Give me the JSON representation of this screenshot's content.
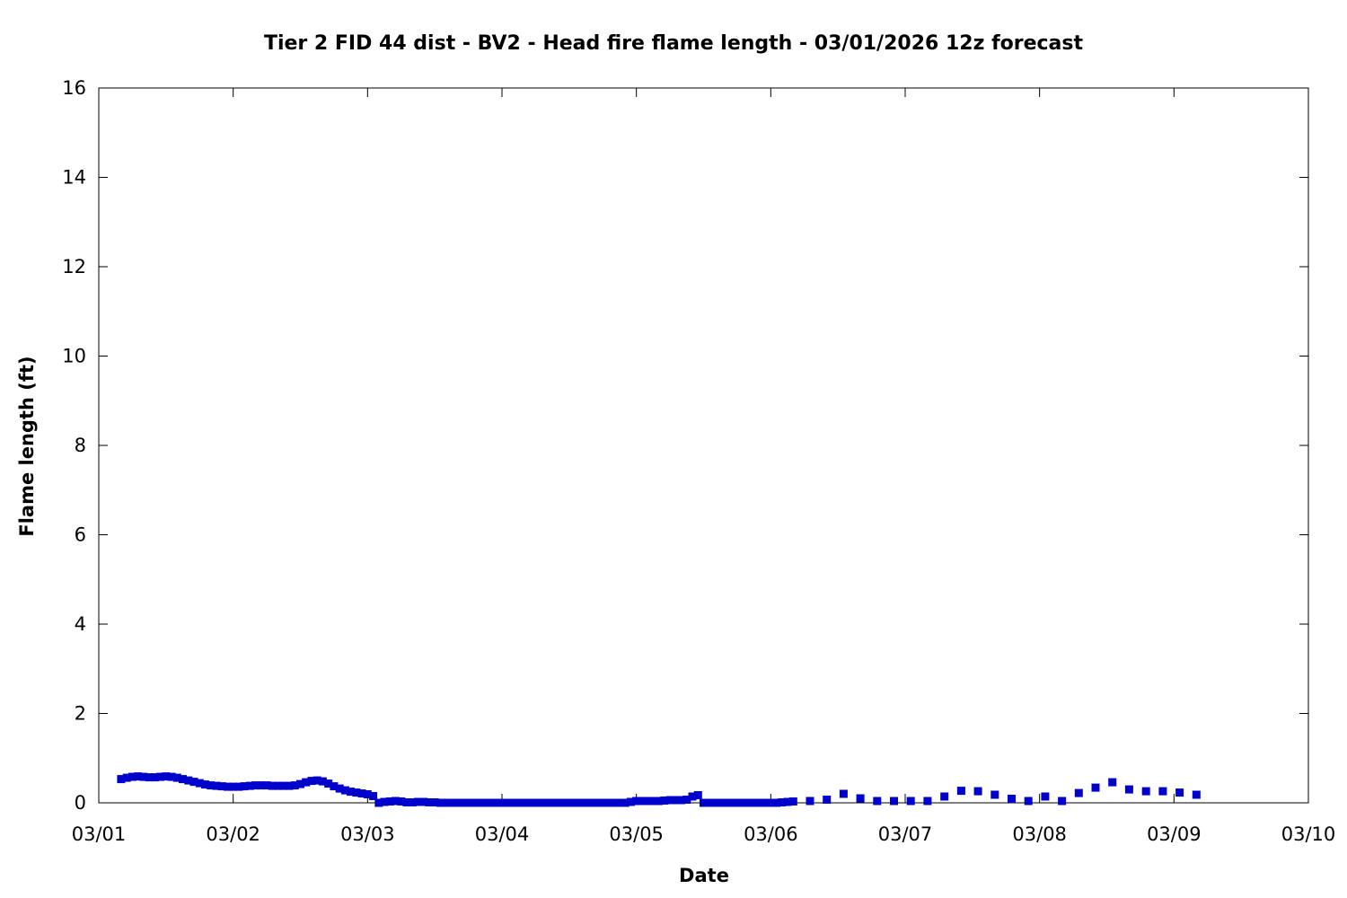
{
  "chart_data": {
    "type": "scatter",
    "title": "Tier 2 FID 44 dist - BV2 - Head fire flame length - 03/01/2026 12z forecast",
    "xlabel": "Date",
    "ylabel": "Flame length (ft)",
    "x_tick_labels": [
      "03/01",
      "03/02",
      "03/03",
      "03/04",
      "03/05",
      "03/06",
      "03/07",
      "03/08",
      "03/09",
      "03/10"
    ],
    "y_tick_labels": [
      "0",
      "2",
      "4",
      "6",
      "8",
      "10",
      "12",
      "14",
      "16"
    ],
    "xlim": [
      "03/01 00:00",
      "03/10 00:00"
    ],
    "ylim": [
      0,
      16
    ],
    "grid": false,
    "legend": "none",
    "marker_color": "#0000CC",
    "series": [
      {
        "points": [
          [
            "03/01 04:00",
            0.53
          ],
          [
            "03/01 05:00",
            0.56
          ],
          [
            "03/01 06:00",
            0.58
          ],
          [
            "03/01 07:00",
            0.59
          ],
          [
            "03/01 08:00",
            0.58
          ],
          [
            "03/01 09:00",
            0.57
          ],
          [
            "03/01 10:00",
            0.57
          ],
          [
            "03/01 11:00",
            0.58
          ],
          [
            "03/01 12:00",
            0.59
          ],
          [
            "03/01 13:00",
            0.58
          ],
          [
            "03/01 14:00",
            0.56
          ],
          [
            "03/01 15:00",
            0.53
          ],
          [
            "03/01 16:00",
            0.5
          ],
          [
            "03/01 17:00",
            0.47
          ],
          [
            "03/01 18:00",
            0.44
          ],
          [
            "03/01 19:00",
            0.41
          ],
          [
            "03/01 20:00",
            0.39
          ],
          [
            "03/01 21:00",
            0.38
          ],
          [
            "03/01 22:00",
            0.37
          ],
          [
            "03/01 23:00",
            0.36
          ],
          [
            "03/02 00:00",
            0.36
          ],
          [
            "03/02 01:00",
            0.36
          ],
          [
            "03/02 02:00",
            0.37
          ],
          [
            "03/02 03:00",
            0.38
          ],
          [
            "03/02 04:00",
            0.39
          ],
          [
            "03/02 05:00",
            0.39
          ],
          [
            "03/02 06:00",
            0.39
          ],
          [
            "03/02 07:00",
            0.38
          ],
          [
            "03/02 08:00",
            0.38
          ],
          [
            "03/02 09:00",
            0.38
          ],
          [
            "03/02 10:00",
            0.38
          ],
          [
            "03/02 11:00",
            0.39
          ],
          [
            "03/02 12:00",
            0.42
          ],
          [
            "03/02 13:00",
            0.46
          ],
          [
            "03/02 14:00",
            0.49
          ],
          [
            "03/02 15:00",
            0.5
          ],
          [
            "03/02 16:00",
            0.48
          ],
          [
            "03/02 17:00",
            0.43
          ],
          [
            "03/02 18:00",
            0.37
          ],
          [
            "03/02 19:00",
            0.32
          ],
          [
            "03/02 20:00",
            0.28
          ],
          [
            "03/02 21:00",
            0.25
          ],
          [
            "03/02 22:00",
            0.23
          ],
          [
            "03/02 23:00",
            0.21
          ],
          [
            "03/03 00:00",
            0.19
          ],
          [
            "03/03 01:00",
            0.15
          ],
          [
            "03/03 02:00",
            0.0
          ],
          [
            "03/03 03:00",
            0.02
          ],
          [
            "03/03 04:00",
            0.03
          ],
          [
            "03/03 05:00",
            0.04
          ],
          [
            "03/03 06:00",
            0.03
          ],
          [
            "03/03 07:00",
            0.01
          ],
          [
            "03/03 08:00",
            0.01
          ],
          [
            "03/03 09:00",
            0.02
          ],
          [
            "03/03 10:00",
            0.02
          ],
          [
            "03/03 11:00",
            0.01
          ],
          [
            "03/03 12:00",
            0.01
          ],
          [
            "03/03 13:00",
            0.0
          ],
          [
            "03/03 14:00",
            0.0
          ],
          [
            "03/03 15:00",
            0.0
          ],
          [
            "03/03 16:00",
            0.0
          ],
          [
            "03/03 17:00",
            0.0
          ],
          [
            "03/03 18:00",
            0.0
          ],
          [
            "03/03 19:00",
            0.0
          ],
          [
            "03/03 20:00",
            0.0
          ],
          [
            "03/03 21:00",
            0.0
          ],
          [
            "03/03 22:00",
            0.0
          ],
          [
            "03/03 23:00",
            0.0
          ],
          [
            "03/04 00:00",
            0.0
          ],
          [
            "03/04 01:00",
            0.0
          ],
          [
            "03/04 02:00",
            0.0
          ],
          [
            "03/04 03:00",
            0.0
          ],
          [
            "03/04 04:00",
            0.0
          ],
          [
            "03/04 05:00",
            0.0
          ],
          [
            "03/04 06:00",
            0.0
          ],
          [
            "03/04 07:00",
            0.0
          ],
          [
            "03/04 08:00",
            0.0
          ],
          [
            "03/04 09:00",
            0.0
          ],
          [
            "03/04 10:00",
            0.0
          ],
          [
            "03/04 11:00",
            0.0
          ],
          [
            "03/04 12:00",
            0.0
          ],
          [
            "03/04 13:00",
            0.0
          ],
          [
            "03/04 14:00",
            0.0
          ],
          [
            "03/04 15:00",
            0.0
          ],
          [
            "03/04 16:00",
            0.0
          ],
          [
            "03/04 17:00",
            0.0
          ],
          [
            "03/04 18:00",
            0.0
          ],
          [
            "03/04 19:00",
            0.0
          ],
          [
            "03/04 20:00",
            0.0
          ],
          [
            "03/04 21:00",
            0.0
          ],
          [
            "03/04 22:00",
            0.0
          ],
          [
            "03/04 23:00",
            0.02
          ],
          [
            "03/05 00:00",
            0.04
          ],
          [
            "03/05 01:00",
            0.04
          ],
          [
            "03/05 02:00",
            0.04
          ],
          [
            "03/05 03:00",
            0.04
          ],
          [
            "03/05 04:00",
            0.04
          ],
          [
            "03/05 05:00",
            0.05
          ],
          [
            "03/05 06:00",
            0.06
          ],
          [
            "03/05 07:00",
            0.06
          ],
          [
            "03/05 08:00",
            0.06
          ],
          [
            "03/05 09:00",
            0.07
          ],
          [
            "03/05 10:00",
            0.14
          ],
          [
            "03/05 11:00",
            0.17
          ],
          [
            "03/05 12:00",
            0.0
          ],
          [
            "03/05 13:00",
            0.0
          ],
          [
            "03/05 14:00",
            0.0
          ],
          [
            "03/05 15:00",
            0.0
          ],
          [
            "03/05 16:00",
            0.0
          ],
          [
            "03/05 17:00",
            0.0
          ],
          [
            "03/05 18:00",
            0.0
          ],
          [
            "03/05 19:00",
            0.0
          ],
          [
            "03/05 20:00",
            0.0
          ],
          [
            "03/05 21:00",
            0.0
          ],
          [
            "03/05 22:00",
            0.0
          ],
          [
            "03/05 23:00",
            0.0
          ],
          [
            "03/06 00:00",
            0.0
          ],
          [
            "03/06 01:00",
            0.0
          ],
          [
            "03/06 02:00",
            0.01
          ],
          [
            "03/06 03:00",
            0.02
          ],
          [
            "03/06 04:00",
            0.03
          ],
          [
            "03/06 07:00",
            0.04
          ],
          [
            "03/06 10:00",
            0.07
          ],
          [
            "03/06 13:00",
            0.2
          ],
          [
            "03/06 16:00",
            0.1
          ],
          [
            "03/06 19:00",
            0.04
          ],
          [
            "03/06 22:00",
            0.04
          ],
          [
            "03/07 01:00",
            0.04
          ],
          [
            "03/07 04:00",
            0.04
          ],
          [
            "03/07 07:00",
            0.14
          ],
          [
            "03/07 10:00",
            0.27
          ],
          [
            "03/07 13:00",
            0.26
          ],
          [
            "03/07 16:00",
            0.18
          ],
          [
            "03/07 19:00",
            0.09
          ],
          [
            "03/07 22:00",
            0.04
          ],
          [
            "03/08 01:00",
            0.14
          ],
          [
            "03/08 04:00",
            0.04
          ],
          [
            "03/08 07:00",
            0.22
          ],
          [
            "03/08 10:00",
            0.34
          ],
          [
            "03/08 13:00",
            0.46
          ],
          [
            "03/08 16:00",
            0.3
          ],
          [
            "03/08 19:00",
            0.26
          ],
          [
            "03/08 22:00",
            0.26
          ],
          [
            "03/09 01:00",
            0.23
          ],
          [
            "03/09 04:00",
            0.18
          ]
        ]
      }
    ]
  }
}
